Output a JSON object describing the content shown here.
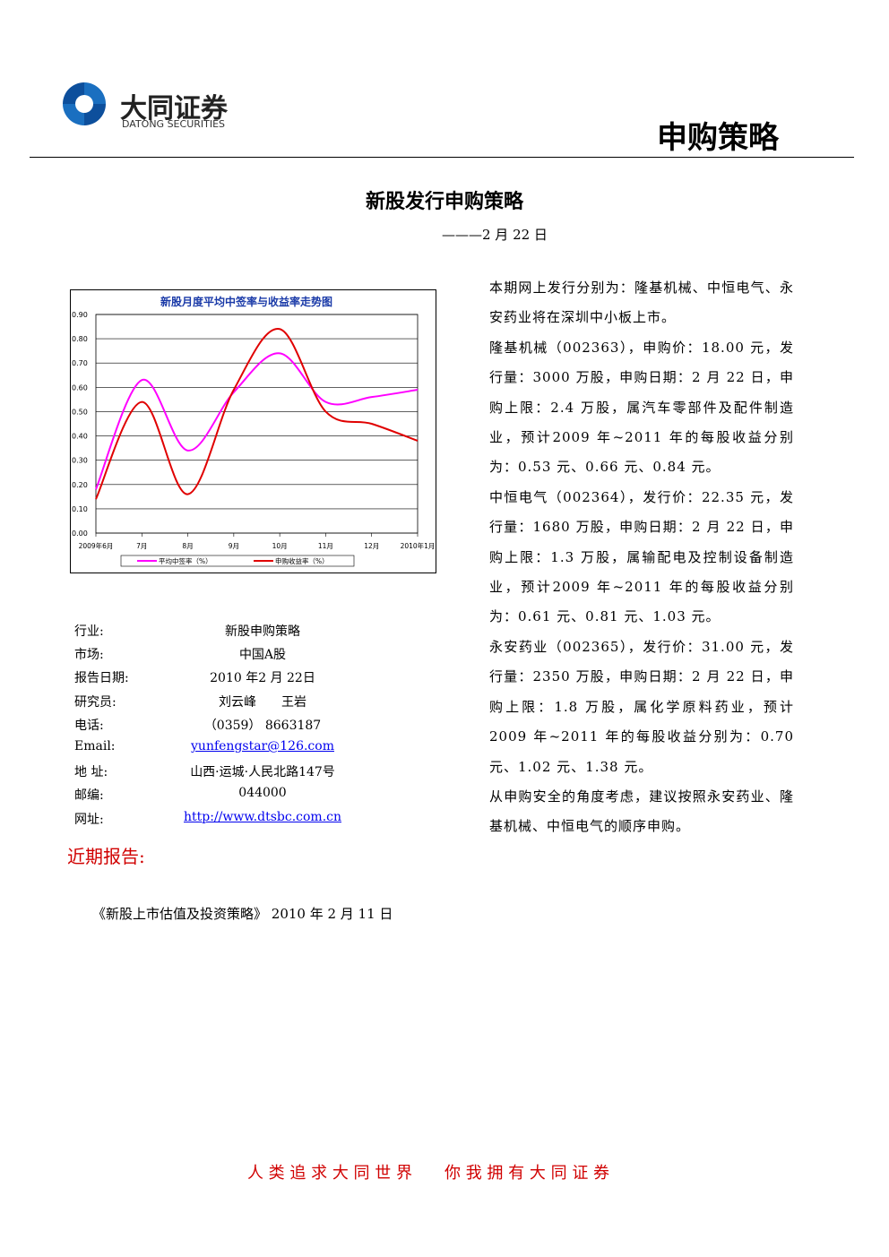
{
  "header": {
    "logo_cn": "大同证券",
    "logo_en": "DATONG SECURITIES",
    "section": "申购策略"
  },
  "title": "新股发行申购策略",
  "date": "———2 月 22 日",
  "chart_data": {
    "type": "line",
    "title": "新股月度平均中签率与收益率走势图",
    "categories": [
      "2009年6月",
      "7月",
      "8月",
      "9月",
      "10月",
      "11月",
      "12月",
      "2010年1月"
    ],
    "series": [
      {
        "name": "平均中签率（%）",
        "color": "#ff00ff",
        "values": [
          0.18,
          0.63,
          0.34,
          0.58,
          0.74,
          0.54,
          0.56,
          0.59
        ]
      },
      {
        "name": "申购收益率（%）",
        "color": "#e00000",
        "values": [
          0.14,
          0.54,
          0.16,
          0.59,
          0.84,
          0.5,
          0.45,
          0.38
        ]
      }
    ],
    "ylim": [
      0,
      0.9
    ],
    "yticks": [
      {
        "value": 0,
        "label": "0.00"
      },
      {
        "value": 0.1,
        "label": "0.10"
      },
      {
        "value": 0.2,
        "label": "0.20"
      },
      {
        "value": 0.3,
        "label": "0.30"
      },
      {
        "value": 0.4,
        "label": "0.40"
      },
      {
        "value": 0.5,
        "label": "0.50"
      },
      {
        "value": 0.6,
        "label": "0.60"
      },
      {
        "value": 0.7,
        "label": "0.70"
      },
      {
        "value": 0.8,
        "label": "0.80"
      },
      {
        "value": 0.9,
        "label": "0.90"
      }
    ],
    "grid": true,
    "legend": "bottom"
  },
  "info": {
    "rows": [
      [
        "行业:",
        "新股申购策略"
      ],
      [
        "市场:",
        "中国A股"
      ],
      [
        "报告日期:",
        "2010 年2 月 22日"
      ],
      [
        "研究员:",
        "刘云峰　　王岩"
      ],
      [
        "电话:",
        "（0359） 8663187"
      ],
      [
        "Email:",
        "yunfengstar@126.com"
      ],
      [
        "地 址:",
        "山西·运城·人民北路147号"
      ],
      [
        "邮编:",
        "044000"
      ],
      [
        "网址:",
        "http://www.dtsbc.com.cn"
      ]
    ]
  },
  "recent": {
    "heading": "近期报告:",
    "items": [
      "《新股上市估值及投资策略》 2010 年 2 月 11 日"
    ]
  },
  "body": [
    "本期网上发行分别为：隆基机械、中恒电气、永安药业将在深圳中小板上市。",
    "隆基机械（002363），申购价：18.00 元，发行量：3000 万股，申购日期：2 月 22 日，申购上限：2.4 万股，属汽车零部件及配件制造业，预计2009 年~2011 年的每股收益分别为：0.53 元、0.66 元、0.84 元。",
    "中恒电气（002364），发行价：22.35 元，发行量：1680 万股，申购日期：2 月 22 日，申购上限：1.3 万股，属输配电及控制设备制造业，预计2009 年~2011 年的每股收益分别为：0.61 元、0.81 元、1.03 元。",
    "永安药业（002365），发行价：31.00 元，发行量：2350 万股，申购日期：2 月 22 日，申购上限：1.8 万股，属化学原料药业，预计2009 年~2011 年的每股收益分别为：0.70 元、1.02 元、1.38 元。",
    "从申购安全的角度考虑，建议按照永安药业、隆基机械、中恒电气的顺序申购。"
  ],
  "footer": "人 类 追 求 大 同 世 界　　你 我 拥 有 大 同 证 券"
}
